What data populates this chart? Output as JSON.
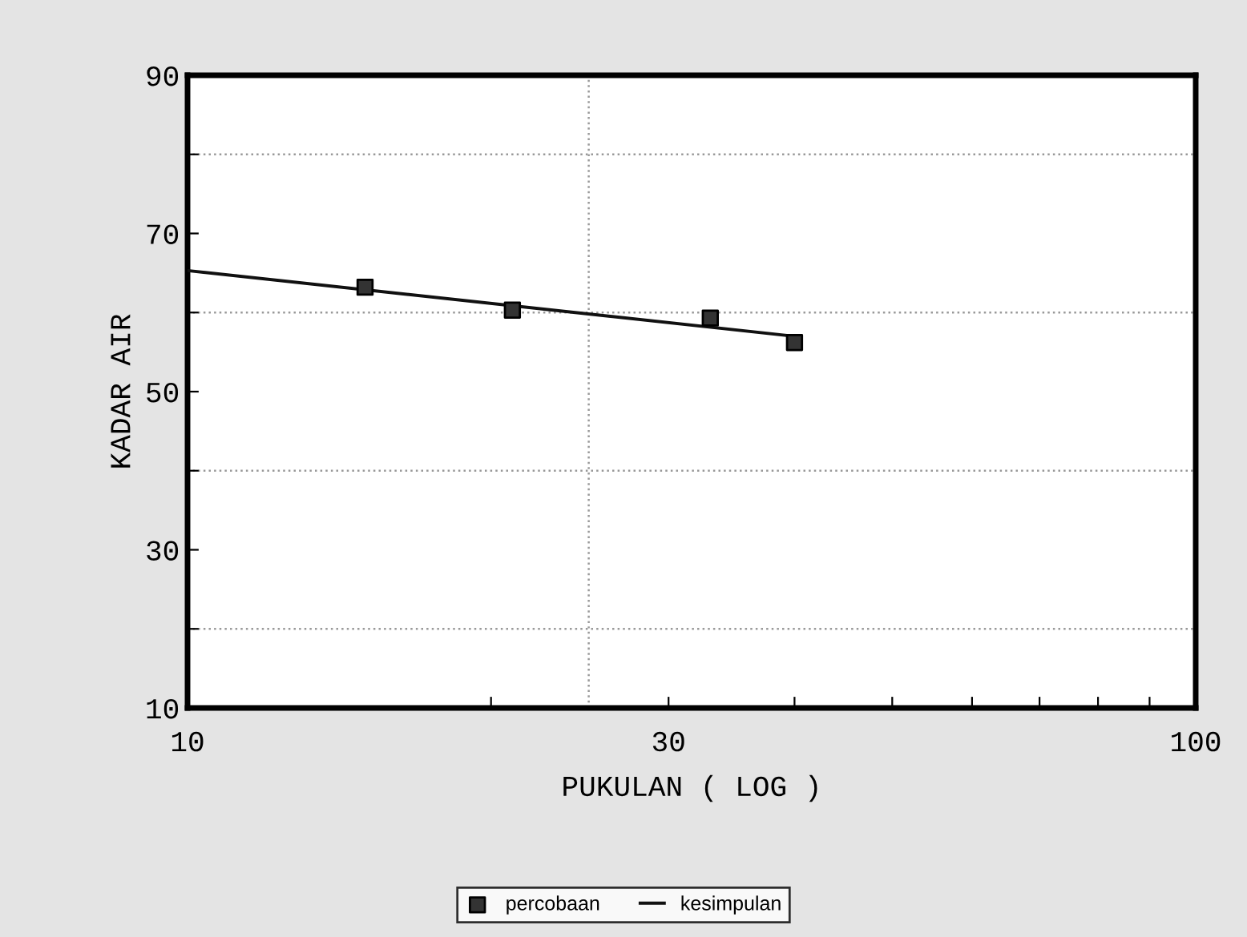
{
  "chart_data": {
    "type": "scatter",
    "xlabel": "PUKULAN ( LOG )",
    "ylabel": "KADAR AIR",
    "log": "x",
    "xlim": [
      10,
      100
    ],
    "xticks": [
      10,
      {
        "value": 20,
        "label": null
      },
      30,
      {
        "value": 40,
        "label": null
      },
      {
        "value": 50,
        "label": null
      },
      {
        "value": 60,
        "label": null
      },
      {
        "value": 70,
        "label": null
      },
      {
        "value": 80,
        "label": null
      },
      {
        "value": 90,
        "label": null
      },
      100
    ],
    "ylim": [
      10,
      90
    ],
    "yticks": [
      10,
      {
        "value": 20,
        "label": null
      },
      30,
      {
        "value": 40,
        "label": null
      },
      50,
      {
        "value": 60,
        "label": null
      },
      70,
      {
        "value": 80,
        "label": null
      },
      90
    ],
    "series": [
      {
        "name": "percobaan",
        "marker": "square",
        "color": "#333333",
        "x": [
          15,
          21,
          33,
          40
        ],
        "values": [
          63.2,
          60.3,
          59.3,
          56.2
        ]
      },
      {
        "name": "kesimpulan",
        "type": "line",
        "marker": "none",
        "line_style": "solid",
        "color": "#111111",
        "x": [
          10,
          40
        ],
        "values": [
          65.3,
          57.0
        ]
      }
    ],
    "ref_lines": [
      {
        "axis": "y",
        "value": 20,
        "color": "#999999",
        "line_style": "dotted"
      },
      {
        "axis": "y",
        "value": 40,
        "color": "#999999",
        "line_style": "dotted"
      },
      {
        "axis": "y",
        "value": 60,
        "color": "#999999",
        "line_style": "dotted"
      },
      {
        "axis": "y",
        "value": 80,
        "color": "#999999",
        "line_style": "dotted"
      },
      {
        "axis": "x",
        "value": 25,
        "color": "#999999",
        "line_style": "dotted"
      }
    ],
    "legend": "bottom",
    "grid": false
  }
}
